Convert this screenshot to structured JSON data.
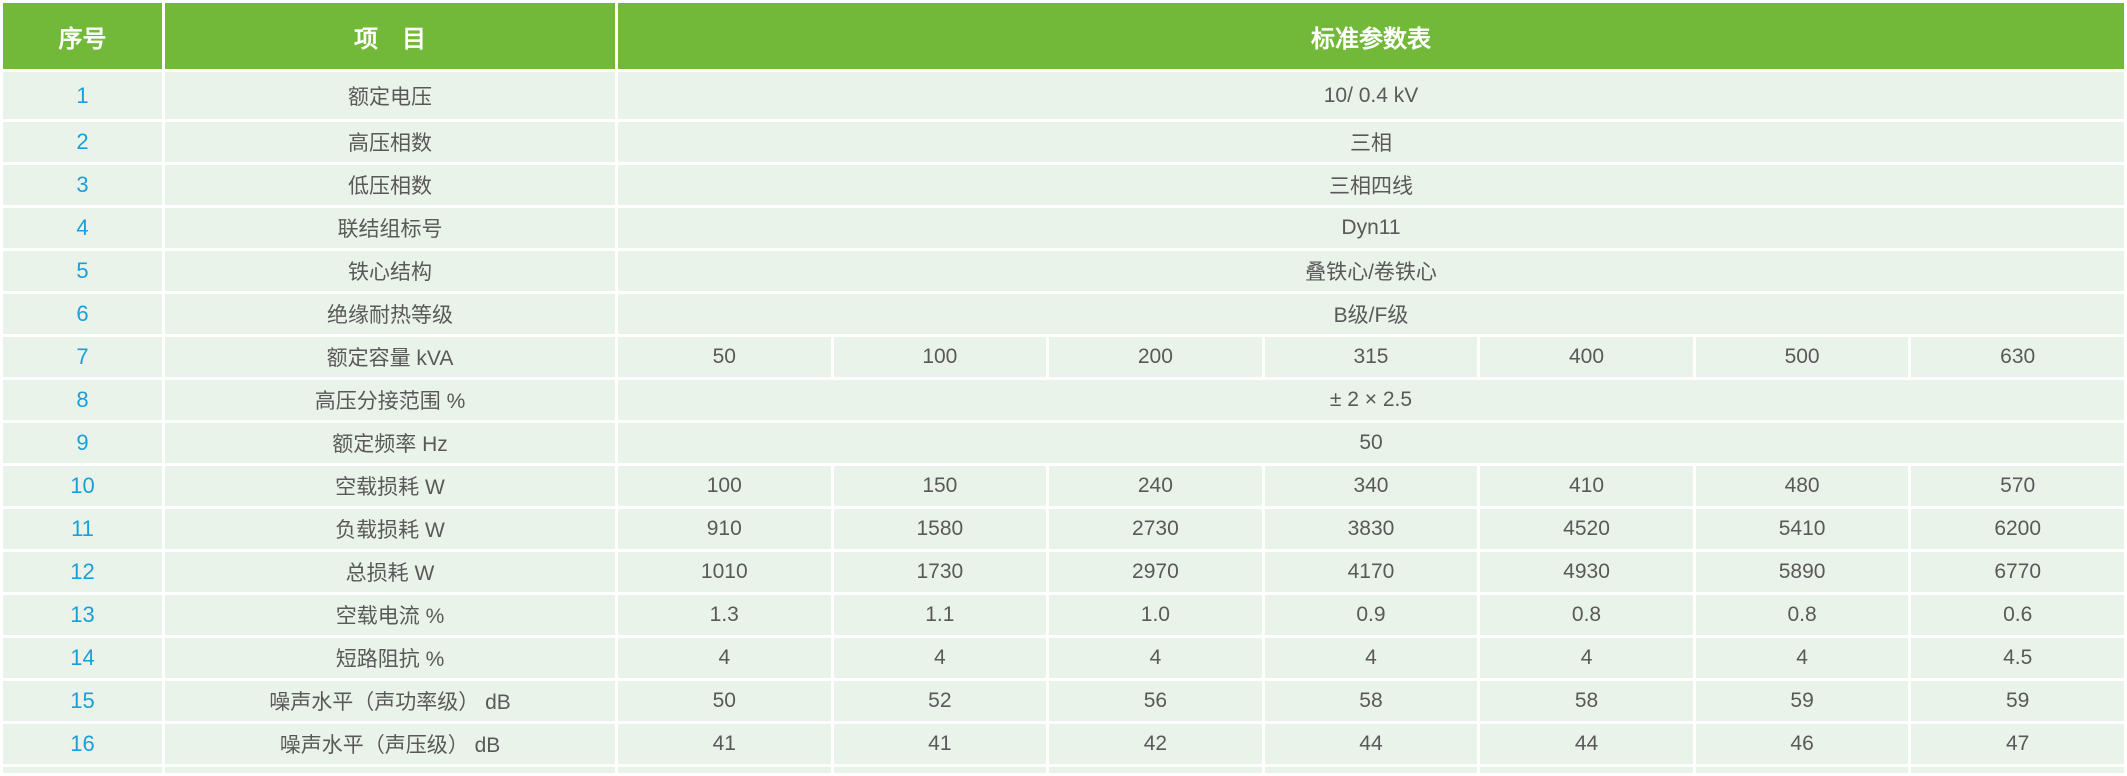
{
  "header": {
    "no": "序号",
    "item": "项　目",
    "params": "标准参数表"
  },
  "colors": {
    "header_bg": "#72b93a",
    "row_bg": "#eaf3ea",
    "number_text": "#1a9fd8",
    "body_text": "#595959"
  },
  "rows": [
    {
      "no": "1",
      "item": "额定电压",
      "value": "10/ 0.4 kV"
    },
    {
      "no": "2",
      "item": "高压相数",
      "value": "三相"
    },
    {
      "no": "3",
      "item": "低压相数",
      "value": "三相四线"
    },
    {
      "no": "4",
      "item": "联结组标号",
      "value": "Dyn11"
    },
    {
      "no": "5",
      "item": "铁心结构",
      "value": "叠铁心/卷铁心"
    },
    {
      "no": "6",
      "item": "绝缘耐热等级",
      "value": "B级/F级"
    },
    {
      "no": "7",
      "item": "额定容量 kVA",
      "values": [
        "50",
        "100",
        "200",
        "315",
        "400",
        "500",
        "630"
      ]
    },
    {
      "no": "8",
      "item": "高压分接范围 %",
      "value": "± 2 × 2.5"
    },
    {
      "no": "9",
      "item": "额定频率 Hz",
      "value": "50"
    },
    {
      "no": "10",
      "item": "空载损耗 W",
      "values": [
        "100",
        "150",
        "240",
        "340",
        "410",
        "480",
        "570"
      ]
    },
    {
      "no": "11",
      "item": "负载损耗 W",
      "values": [
        "910",
        "1580",
        "2730",
        "3830",
        "4520",
        "5410",
        "6200"
      ]
    },
    {
      "no": "12",
      "item": "总损耗 W",
      "values": [
        "1010",
        "1730",
        "2970",
        "4170",
        "4930",
        "5890",
        "6770"
      ]
    },
    {
      "no": "13",
      "item": "空载电流 %",
      "values": [
        "1.3",
        "1.1",
        "1.0",
        "0.9",
        "0.8",
        "0.8",
        "0.6"
      ]
    },
    {
      "no": "14",
      "item": "短路阻抗 %",
      "values": [
        "4",
        "4",
        "4",
        "4",
        "4",
        "4",
        "4.5"
      ]
    },
    {
      "no": "15",
      "item": "噪声水平（声功率级） dB",
      "values": [
        "50",
        "52",
        "56",
        "58",
        "58",
        "59",
        "59"
      ]
    },
    {
      "no": "16",
      "item": "噪声水平（声压级） dB",
      "values": [
        "41",
        "41",
        "42",
        "44",
        "44",
        "46",
        "47"
      ]
    }
  ]
}
